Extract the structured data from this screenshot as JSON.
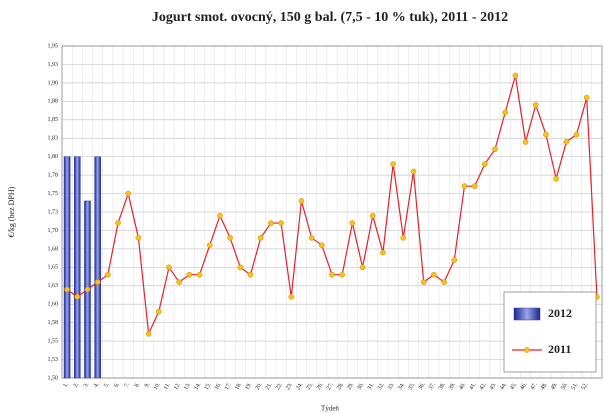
{
  "chart_data": {
    "type": "bar-line",
    "title": "Jogurt smot. ovocný, 150 g bal. (7,5 - 10 % tuk), 2011 - 2012",
    "y_label": "€/kg (bez DPH)",
    "x_label": "Týdeň",
    "categories": [
      "1.",
      "2.",
      "3.",
      "4.",
      "5.",
      "6.",
      "7.",
      "8.",
      "9.",
      "10.",
      "11.",
      "12.",
      "13.",
      "14.",
      "15.",
      "16.",
      "17.",
      "18.",
      "19.",
      "20.",
      "21.",
      "22.",
      "23.",
      "24.",
      "25.",
      "26.",
      "27.",
      "28.",
      "29.",
      "30.",
      "31.",
      "32.",
      "33.",
      "34.",
      "35.",
      "36.",
      "37.",
      "38.",
      "39.",
      "40.",
      "41.",
      "42.",
      "43.",
      "44.",
      "45.",
      "46.",
      "47.",
      "48.",
      "49.",
      "50.",
      "51.",
      "52.",
      null
    ],
    "series": [
      {
        "name": "2012",
        "type": "bar",
        "color": "#2b3aa8",
        "values": [
          1.8,
          1.8,
          1.74,
          1.8,
          null,
          null,
          null,
          null,
          null,
          null,
          null,
          null,
          null,
          null,
          null,
          null,
          null,
          null,
          null,
          null,
          null,
          null,
          null,
          null,
          null,
          null,
          null,
          null,
          null,
          null,
          null,
          null,
          null,
          null,
          null,
          null,
          null,
          null,
          null,
          null,
          null,
          null,
          null,
          null,
          null,
          null,
          null,
          null,
          null,
          null,
          null,
          null,
          null
        ]
      },
      {
        "name": "2011",
        "type": "line",
        "color": "#e8202a",
        "marker_color": "#f7c21a",
        "values": [
          1.62,
          1.61,
          1.62,
          1.63,
          1.64,
          1.71,
          1.75,
          1.69,
          1.56,
          1.59,
          1.65,
          1.63,
          1.64,
          1.64,
          1.68,
          1.72,
          1.69,
          1.65,
          1.64,
          1.69,
          1.71,
          1.71,
          1.61,
          1.74,
          1.69,
          1.68,
          1.64,
          1.64,
          1.71,
          1.65,
          1.72,
          1.67,
          1.79,
          1.69,
          1.78,
          1.63,
          1.64,
          1.63,
          1.66,
          1.76,
          1.76,
          1.79,
          1.81,
          1.86,
          1.91,
          1.82,
          1.87,
          1.83,
          1.77,
          1.82,
          1.83,
          1.88,
          1.61
        ]
      }
    ],
    "ylim": [
      1.5,
      1.95
    ],
    "yticks": [
      {
        "value": 1.5,
        "label": "1,50"
      },
      {
        "value": 1.525,
        "label": "1,53"
      },
      {
        "value": 1.55,
        "label": "1,55"
      },
      {
        "value": 1.575,
        "label": "1,58"
      },
      {
        "value": 1.6,
        "label": "1,60"
      },
      {
        "value": 1.625,
        "label": "1,63"
      },
      {
        "value": 1.65,
        "label": "1,65"
      },
      {
        "value": 1.675,
        "label": "1,68"
      },
      {
        "value": 1.7,
        "label": "1,70"
      },
      {
        "value": 1.725,
        "label": "1,73"
      },
      {
        "value": 1.75,
        "label": "1,75"
      },
      {
        "value": 1.775,
        "label": "1,78"
      },
      {
        "value": 1.8,
        "label": "1,80"
      },
      {
        "value": 1.825,
        "label": "1,83"
      },
      {
        "value": 1.85,
        "label": "1,85"
      },
      {
        "value": 1.875,
        "label": "1,88"
      },
      {
        "value": 1.9,
        "label": "1,90"
      },
      {
        "value": 1.925,
        "label": "1,93"
      },
      {
        "value": 1.95,
        "label": "1,95"
      }
    ],
    "grid": true,
    "legend": "bottom-right"
  }
}
